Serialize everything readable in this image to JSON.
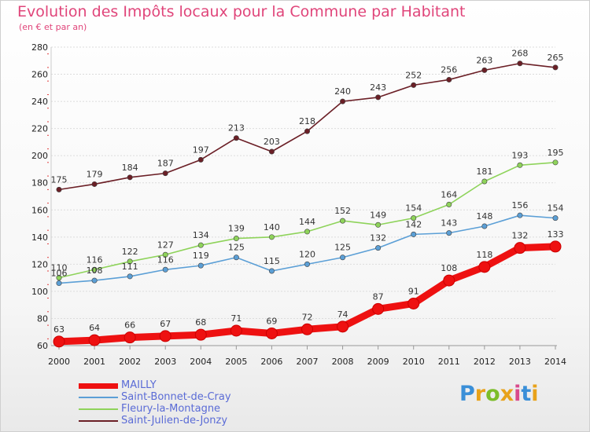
{
  "title": "Evolution des Impôts locaux pour la Commune par Habitant",
  "subtitle": "(en € et par an)",
  "logo": {
    "text": "Proxiti",
    "colors": [
      "#3a8fd8",
      "#e8a21a",
      "#7cbd2a",
      "#e8a21a",
      "#d94a8c",
      "#3a8fd8",
      "#e8a21a"
    ]
  },
  "chart_data": {
    "type": "line",
    "x": [
      "2000",
      "2001",
      "2002",
      "2003",
      "2004",
      "2005",
      "2006",
      "2007",
      "2008",
      "2009",
      "2010",
      "2011",
      "2012",
      "2013",
      "2014"
    ],
    "ylim": [
      60,
      280
    ],
    "yticks": [
      60,
      80,
      100,
      120,
      140,
      160,
      180,
      200,
      220,
      240,
      260,
      280
    ],
    "grid": true,
    "legend_position": "bottom-left",
    "series": [
      {
        "name": "Saint-Julien-de-Jonzy",
        "color": "#6b1f26",
        "values": [
          175,
          179,
          184,
          187,
          197,
          213,
          203,
          218,
          240,
          243,
          252,
          256,
          263,
          268,
          265
        ]
      },
      {
        "name": "Fleury-la-Montagne",
        "color": "#8ed35a",
        "values": [
          110,
          116,
          122,
          127,
          134,
          139,
          140,
          144,
          152,
          149,
          154,
          164,
          181,
          193,
          195
        ]
      },
      {
        "name": "Saint-Bonnet-de-Cray",
        "color": "#5b9fd6",
        "values": [
          106,
          108,
          111,
          116,
          119,
          125,
          115,
          120,
          125,
          132,
          142,
          143,
          148,
          156,
          154
        ]
      },
      {
        "name": "MAILLY",
        "color": "#ee1111",
        "values": [
          63,
          64,
          66,
          67,
          68,
          71,
          69,
          72,
          74,
          87,
          91,
          108,
          118,
          132,
          133
        ]
      }
    ],
    "legend_order": [
      "MAILLY",
      "Saint-Bonnet-de-Cray",
      "Fleury-la-Montagne",
      "Saint-Julien-de-Jonzy"
    ]
  }
}
